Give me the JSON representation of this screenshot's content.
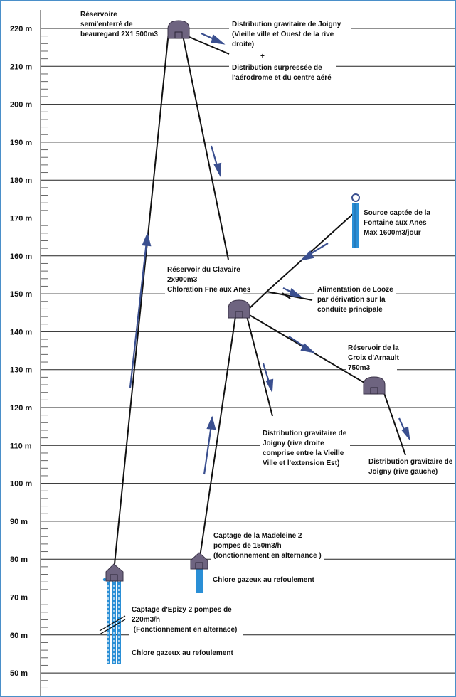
{
  "axis": {
    "unit": "m",
    "ticks": [
      "220 m",
      "210 m",
      "200 m",
      "190 m",
      "180 m",
      "170 m",
      "160 m",
      "150 m",
      "140 m",
      "130 m",
      "120 m",
      "110 m",
      "100 m",
      "90 m",
      "80 m",
      "70 m",
      "60 m",
      "50 m"
    ]
  },
  "colors": {
    "frame": "#4a8fc9",
    "reservoir": "#6e6480",
    "pipe": "#111111",
    "arrow": "#3a4f8f",
    "water": "#2a8fd6"
  },
  "labels": {
    "beauregard": [
      "Réservoire",
      "semi'enterré de",
      "beauregard 2X1 500m3"
    ],
    "joigny_top": [
      "Distribution gravitaire de  Joigny",
      "(Vieille ville et Ouest de la rive",
      "droite)"
    ],
    "plus": "+",
    "aerodrome": [
      "Distribution  surpressée de",
      "l'aérodrome et du centre aéré"
    ],
    "source": [
      "Source captée de la",
      "Fontaine aux Anes",
      "Max 1600m3/jour"
    ],
    "clavaire": [
      "Réservoir du Clavaire",
      "2x900m3",
      "Chloration Fne aux Anes"
    ],
    "looze": [
      "Alimentation de Looze",
      "par dérivation sur la",
      "conduite principale"
    ],
    "croix": [
      "Réservoir de la",
      "Croix d'Arnault",
      "750m3"
    ],
    "rive_droite": [
      "Distribution gravitaire de",
      "Joigny (rive droite",
      "comprise entre  la Vieille",
      "Ville et l'extension Est)"
    ],
    "rive_gauche": [
      "Distribution gravitaire de",
      "Joigny (rive gauche)"
    ],
    "madeleine": [
      "Captage de la Madeleine 2",
      "pompes de 150m3/h",
      "(fonctionnement en alternance )"
    ],
    "chlore_madeleine": "Chlore gazeux au refoulement",
    "epizy": [
      "Captage d'Epizy 2 pompes de",
      "220m3/h",
      " (Fonctionnement en alternace)"
    ],
    "chlore_epizy": "Chlore gazeux au refoulement"
  }
}
